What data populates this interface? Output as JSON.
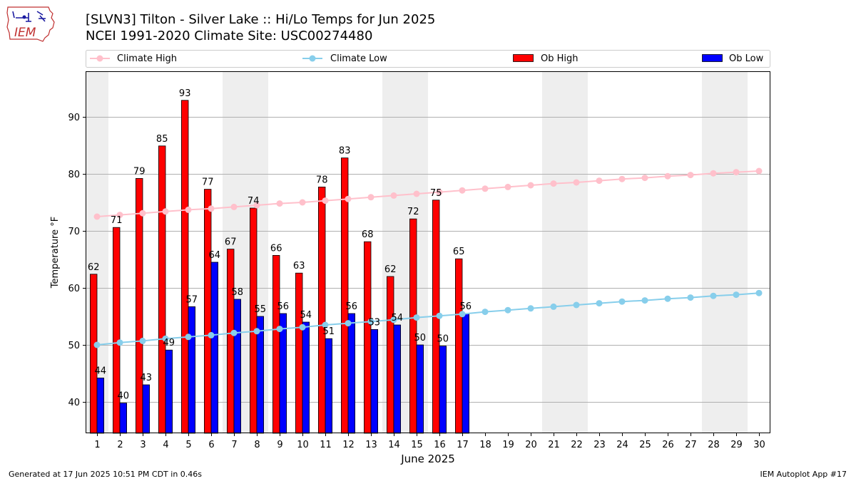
{
  "title_line1": "[SLVN3] Tilton - Silver Lake :: Hi/Lo Temps for Jun 2025",
  "title_line2": "NCEI 1991-2020 Climate Site: USC00274480",
  "logo_text": "IEM",
  "footer_left": "Generated at 17 Jun 2025 10:51 PM CDT in 0.46s",
  "footer_right": "IEM Autoplot App #17",
  "colors": {
    "climate_high": "#ffc0cb",
    "climate_low": "#87ceeb",
    "ob_high": "#ff0000",
    "ob_low": "#0000ff",
    "weekend_shade": "#eeeeee",
    "grid": "#b0b0b0"
  },
  "chart_data": {
    "type": "bar",
    "xlabel": "June 2025",
    "ylabel": "Temperature °F",
    "xlim": [
      0.5,
      30.5
    ],
    "ylim": [
      34.5,
      98.0
    ],
    "yticks": [
      40,
      50,
      60,
      70,
      80,
      90
    ],
    "grid": "horizontal",
    "legend_position": "top",
    "days": [
      1,
      2,
      3,
      4,
      5,
      6,
      7,
      8,
      9,
      10,
      11,
      12,
      13,
      14,
      15,
      16,
      17,
      18,
      19,
      20,
      21,
      22,
      23,
      24,
      25,
      26,
      27,
      28,
      29,
      30
    ],
    "weekend_shading": [
      [
        0.5,
        1.5
      ],
      [
        6.5,
        8.5
      ],
      [
        13.5,
        15.5
      ],
      [
        20.5,
        22.5
      ],
      [
        27.5,
        29.5
      ]
    ],
    "series": [
      {
        "name": "Climate High",
        "kind": "line",
        "values": [
          72.5,
          72.8,
          73.1,
          73.4,
          73.7,
          73.9,
          74.2,
          74.5,
          74.8,
          75.0,
          75.3,
          75.6,
          75.9,
          76.2,
          76.5,
          76.8,
          77.1,
          77.4,
          77.7,
          78.0,
          78.3,
          78.5,
          78.8,
          79.1,
          79.3,
          79.6,
          79.8,
          80.1,
          80.3,
          80.5
        ]
      },
      {
        "name": "Climate Low",
        "kind": "line",
        "values": [
          50.0,
          50.4,
          50.7,
          51.1,
          51.4,
          51.7,
          52.1,
          52.4,
          52.8,
          53.1,
          53.5,
          53.8,
          54.1,
          54.4,
          54.8,
          55.1,
          55.4,
          55.8,
          56.1,
          56.4,
          56.7,
          57.0,
          57.3,
          57.6,
          57.8,
          58.1,
          58.3,
          58.6,
          58.8,
          59.1
        ]
      },
      {
        "name": "Ob High",
        "kind": "bar",
        "values": [
          62.4,
          70.6,
          79.2,
          84.9,
          92.9,
          77.3,
          66.8,
          74.0,
          65.7,
          62.6,
          77.7,
          82.8,
          68.1,
          62.0,
          72.1,
          75.4,
          65.1
        ],
        "labels": [
          "62",
          "71",
          "79",
          "85",
          "93",
          "77",
          "67",
          "74",
          "66",
          "63",
          "78",
          "83",
          "68",
          "62",
          "72",
          "75",
          "65"
        ]
      },
      {
        "name": "Ob Low",
        "kind": "bar",
        "values": [
          44.2,
          39.8,
          43.0,
          49.1,
          56.7,
          64.5,
          58.0,
          55.0,
          55.5,
          54.0,
          51.1,
          55.5,
          52.7,
          53.5,
          50.0,
          49.8,
          55.5
        ],
        "labels": [
          "44",
          "40",
          "43",
          "49",
          "57",
          "64",
          "58",
          "55",
          "56",
          "54",
          "51",
          "56",
          "53",
          "54",
          "50",
          "50",
          "56"
        ]
      }
    ]
  }
}
